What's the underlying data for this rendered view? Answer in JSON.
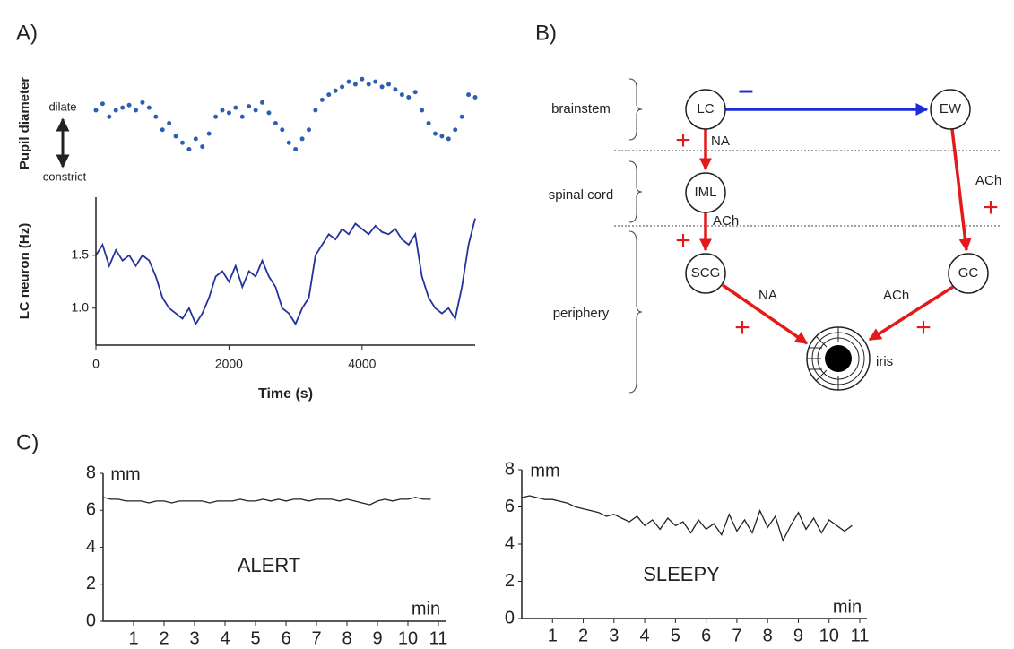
{
  "panel_labels": [
    "A)",
    "B)",
    "C)"
  ],
  "chart_data": [
    {
      "type": "scatter",
      "ylabel": "Pupil diameter",
      "annotations": [
        "dilate",
        "constrict"
      ],
      "color": "#2d5fb0",
      "x": [
        0,
        100,
        200,
        300,
        400,
        500,
        600,
        700,
        800,
        900,
        1000,
        1100,
        1200,
        1300,
        1400,
        1500,
        1600,
        1700,
        1800,
        1900,
        2000,
        2100,
        2200,
        2300,
        2400,
        2500,
        2600,
        2700,
        2800,
        2900,
        3000,
        3100,
        3200,
        3300,
        3400,
        3500,
        3600,
        3700,
        3800,
        3900,
        4000,
        4100,
        4200,
        4300,
        4400,
        4500,
        4600,
        4700,
        4800,
        4900,
        5000,
        5100,
        5200,
        5300,
        5400,
        5500,
        5600,
        5700
      ],
      "values": [
        0.6,
        0.65,
        0.55,
        0.6,
        0.62,
        0.64,
        0.6,
        0.66,
        0.62,
        0.55,
        0.45,
        0.5,
        0.4,
        0.35,
        0.3,
        0.38,
        0.32,
        0.42,
        0.55,
        0.6,
        0.58,
        0.62,
        0.55,
        0.63,
        0.6,
        0.66,
        0.58,
        0.5,
        0.45,
        0.35,
        0.3,
        0.38,
        0.45,
        0.6,
        0.68,
        0.72,
        0.75,
        0.78,
        0.82,
        0.8,
        0.84,
        0.8,
        0.82,
        0.78,
        0.8,
        0.76,
        0.72,
        0.7,
        0.74,
        0.6,
        0.5,
        0.42,
        0.4,
        0.38,
        0.45,
        0.55,
        0.72,
        0.7
      ],
      "xlim": [
        0,
        5700
      ],
      "ylim": [
        0,
        1
      ]
    },
    {
      "type": "line",
      "ylabel": "LC neuron (Hz)",
      "xlabel": "Time (s)",
      "color": "#23339a",
      "x": [
        0,
        100,
        200,
        300,
        400,
        500,
        600,
        700,
        800,
        900,
        1000,
        1100,
        1200,
        1300,
        1400,
        1500,
        1600,
        1700,
        1800,
        1900,
        2000,
        2100,
        2200,
        2300,
        2400,
        2500,
        2600,
        2700,
        2800,
        2900,
        3000,
        3100,
        3200,
        3300,
        3400,
        3500,
        3600,
        3700,
        3800,
        3900,
        4000,
        4100,
        4200,
        4300,
        4400,
        4500,
        4600,
        4700,
        4800,
        4900,
        5000,
        5100,
        5200,
        5300,
        5400,
        5500,
        5600,
        5700
      ],
      "values": [
        1.5,
        1.6,
        1.4,
        1.55,
        1.45,
        1.5,
        1.4,
        1.5,
        1.45,
        1.3,
        1.1,
        1.0,
        0.95,
        0.9,
        1.0,
        0.85,
        0.95,
        1.1,
        1.3,
        1.35,
        1.25,
        1.4,
        1.2,
        1.35,
        1.3,
        1.45,
        1.3,
        1.2,
        1.0,
        0.95,
        0.85,
        1.0,
        1.1,
        1.5,
        1.6,
        1.7,
        1.65,
        1.75,
        1.7,
        1.8,
        1.75,
        1.7,
        1.78,
        1.72,
        1.7,
        1.75,
        1.65,
        1.6,
        1.7,
        1.3,
        1.1,
        1.0,
        0.95,
        1.0,
        0.9,
        1.2,
        1.6,
        1.85
      ],
      "xlim": [
        0,
        5700
      ],
      "ylim": [
        0.65,
        2.05
      ],
      "xticks": [
        0,
        2000,
        4000
      ],
      "yticks": [
        {
          "value": 1,
          "label": "1.0"
        },
        {
          "value": 1.5,
          "label": "1.5"
        }
      ]
    },
    {
      "type": "line",
      "ylabel": "mm",
      "xlabel": "min",
      "annotation": "ALERT",
      "color": "#222222",
      "x": [
        0,
        0.25,
        0.5,
        0.75,
        1,
        1.25,
        1.5,
        1.75,
        2,
        2.25,
        2.5,
        2.75,
        3,
        3.25,
        3.5,
        3.75,
        4,
        4.25,
        4.5,
        4.75,
        5,
        5.25,
        5.5,
        5.75,
        6,
        6.25,
        6.5,
        6.75,
        7,
        7.25,
        7.5,
        7.75,
        8,
        8.25,
        8.5,
        8.75,
        9,
        9.25,
        9.5,
        9.75,
        10,
        10.25,
        10.5,
        10.75
      ],
      "values": [
        6.7,
        6.6,
        6.6,
        6.5,
        6.5,
        6.5,
        6.4,
        6.5,
        6.5,
        6.4,
        6.5,
        6.5,
        6.5,
        6.5,
        6.4,
        6.5,
        6.5,
        6.5,
        6.6,
        6.5,
        6.5,
        6.6,
        6.5,
        6.6,
        6.5,
        6.6,
        6.6,
        6.5,
        6.6,
        6.6,
        6.6,
        6.5,
        6.6,
        6.5,
        6.4,
        6.3,
        6.5,
        6.6,
        6.5,
        6.6,
        6.6,
        6.7,
        6.6,
        6.6
      ],
      "xlim": [
        0,
        11
      ],
      "ylim": [
        0,
        8
      ],
      "xticks": [
        1,
        2,
        3,
        4,
        5,
        6,
        7,
        8,
        9,
        10,
        11
      ],
      "yticks": [
        0,
        2,
        4,
        6,
        8
      ]
    },
    {
      "type": "line",
      "ylabel": "mm",
      "xlabel": "min",
      "annotation": "SLEEPY",
      "color": "#222222",
      "x": [
        0,
        0.25,
        0.5,
        0.75,
        1,
        1.25,
        1.5,
        1.75,
        2,
        2.25,
        2.5,
        2.75,
        3,
        3.25,
        3.5,
        3.75,
        4,
        4.25,
        4.5,
        4.75,
        5,
        5.25,
        5.5,
        5.75,
        6,
        6.25,
        6.5,
        6.75,
        7,
        7.25,
        7.5,
        7.75,
        8,
        8.25,
        8.5,
        8.75,
        9,
        9.25,
        9.5,
        9.75,
        10,
        10.25,
        10.5,
        10.75
      ],
      "values": [
        6.5,
        6.6,
        6.5,
        6.4,
        6.4,
        6.3,
        6.2,
        6.0,
        5.9,
        5.8,
        5.7,
        5.5,
        5.6,
        5.4,
        5.2,
        5.5,
        5.0,
        5.3,
        4.8,
        5.4,
        5.0,
        5.2,
        4.6,
        5.3,
        4.8,
        5.1,
        4.5,
        5.6,
        4.7,
        5.3,
        4.6,
        5.8,
        4.9,
        5.5,
        4.2,
        5.0,
        5.7,
        4.8,
        5.4,
        4.6,
        5.3,
        5.0,
        4.7,
        5.0
      ],
      "xlim": [
        0,
        11
      ],
      "ylim": [
        0,
        8
      ],
      "xticks": [
        1,
        2,
        3,
        4,
        5,
        6,
        7,
        8,
        9,
        10,
        11
      ],
      "yticks": [
        0,
        2,
        4,
        6,
        8
      ]
    }
  ],
  "diagram": {
    "regions": [
      "brainstem",
      "spinal cord",
      "periphery"
    ],
    "nodes": [
      "LC",
      "EW",
      "IML",
      "SCG",
      "GC",
      "iris"
    ],
    "edges": [
      {
        "sign": "–"
      },
      {
        "label": "NA",
        "sign": "+"
      },
      {
        "label": "ACh",
        "sign": "+"
      },
      {
        "label": "ACh",
        "sign": "+"
      },
      {
        "label": "NA",
        "sign": "+"
      },
      {
        "label": "ACh",
        "sign": "+"
      }
    ]
  }
}
